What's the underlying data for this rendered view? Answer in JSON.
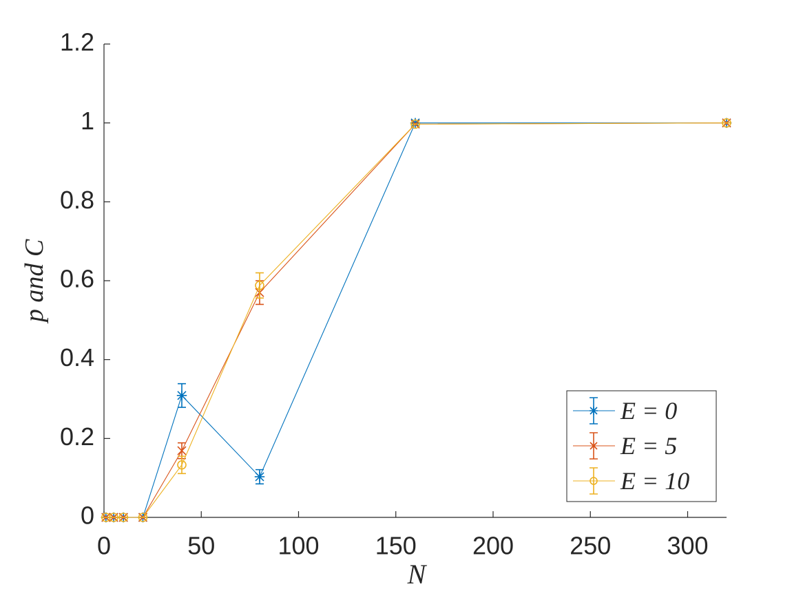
{
  "chart_data": {
    "type": "errorbar-line",
    "xlabel": "N",
    "ylabel": "p and C",
    "x": [
      1,
      5,
      10,
      20,
      40,
      80,
      160,
      320
    ],
    "series": [
      {
        "name": "E = 0",
        "color": "#0072BD",
        "marker": "*",
        "values": [
          0,
          0,
          0,
          0,
          0.309,
          0.103,
          1,
          1
        ],
        "errors": [
          0,
          0,
          0,
          0,
          0.03,
          0.018,
          0,
          0
        ]
      },
      {
        "name": "E = 5",
        "color": "#D95319",
        "marker": "x",
        "values": [
          0,
          0,
          0,
          0,
          0.169,
          0.57,
          0.997,
          1
        ],
        "errors": [
          0,
          0,
          0,
          0,
          0.02,
          0.03,
          0,
          0
        ]
      },
      {
        "name": "E = 10",
        "color": "#EDB120",
        "marker": "o",
        "values": [
          0,
          0,
          0,
          0,
          0.133,
          0.588,
          0.997,
          1
        ],
        "errors": [
          0,
          0,
          0,
          0,
          0.022,
          0.032,
          0,
          0
        ]
      }
    ],
    "xlim": [
      0,
      320
    ],
    "xticks": [
      0,
      50,
      100,
      150,
      200,
      250,
      300
    ],
    "ylim": [
      0,
      1.2
    ],
    "yticks": [
      0,
      0.2,
      0.4,
      0.6,
      0.8,
      1,
      1.2
    ],
    "grid": false,
    "legend": "southeast"
  }
}
